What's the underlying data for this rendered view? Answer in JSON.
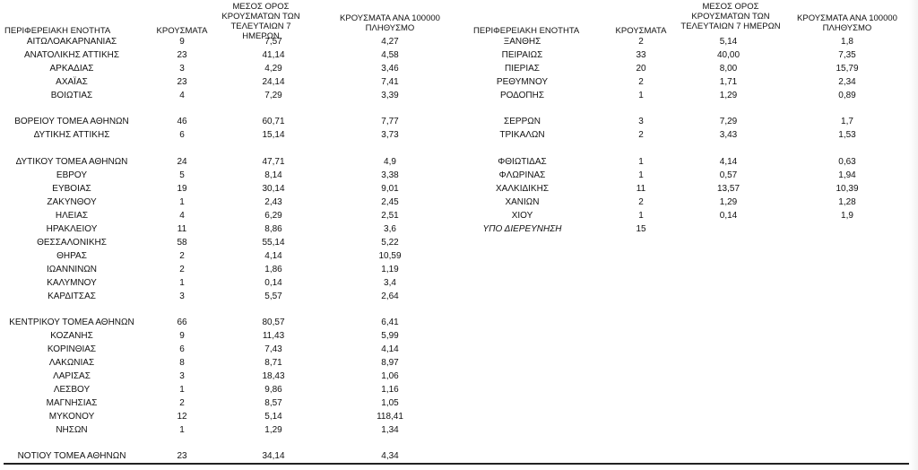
{
  "headers": {
    "left": {
      "region": "ΠΕΡΙΦΕΡΕΙΑΚΗ ΕΝΟΤΗΤΑ",
      "cases": "ΚΡΟΥΣΜΑΤΑ",
      "avg_l1": "ΜΕΣΟΣ ΟΡΟΣ",
      "avg_l2": "ΚΡΟΥΣΜΑΤΩΝ ΤΩΝ",
      "avg_l3": "ΤΕΛΕΥΤΑΙΩΝ 7 ΗΜΕΡΩΝ",
      "per_l1": "ΚΡΟΥΣΜΑΤΑ ΑΝΑ 100000",
      "per_l2": "ΠΛΗΘΥΣΜΟ"
    },
    "right": {
      "region": "ΠΕΡΙΦΕΡΕΙΑΚΗ ΕΝΟΤΗΤΑ",
      "cases": "ΚΡΟΥΣΜΑΤΑ",
      "avg_l1": "ΜΕΣΟΣ ΟΡΟΣ",
      "avg_l2": "ΚΡΟΥΣΜΑΤΩΝ ΤΩΝ",
      "avg_l3": "ΤΕΛΕΥΤΑΙΩΝ 7 ΗΜΕΡΩΝ",
      "per_l1": "ΚΡΟΥΣΜΑΤΑ ΑΝΑ 100000",
      "per_l2": "ΠΛΗΘΥΣΜΟ"
    }
  },
  "left_rows": [
    {
      "region": "ΑΙΤΩΛΟΑΚΑΡΝΑΝΙΑΣ",
      "cases": "9",
      "avg7": "7,57",
      "per100k": "4,27"
    },
    {
      "region": "ΑΝΑΤΟΛΙΚΗΣ ΑΤΤΙΚΗΣ",
      "cases": "23",
      "avg7": "41,14",
      "per100k": "4,58"
    },
    {
      "region": "ΑΡΚΑΔΙΑΣ",
      "cases": "3",
      "avg7": "4,29",
      "per100k": "3,46"
    },
    {
      "region": "ΑΧΑΪΑΣ",
      "cases": "23",
      "avg7": "24,14",
      "per100k": "7,41"
    },
    {
      "region": "ΒΟΙΩΤΙΑΣ",
      "cases": "4",
      "avg7": "7,29",
      "per100k": "3,39"
    },
    {
      "region": "ΒΟΡΕΙΟΥ ΤΟΜΕΑ ΑΘΗΝΩΝ",
      "cases": "46",
      "avg7": "60,71",
      "per100k": "7,77"
    },
    {
      "region": "ΔΥΤΙΚΗΣ ΑΤΤΙΚΗΣ",
      "cases": "6",
      "avg7": "15,14",
      "per100k": "3,73"
    },
    {
      "region": "ΔΥΤΙΚΟΥ ΤΟΜΕΑ ΑΘΗΝΩΝ",
      "cases": "24",
      "avg7": "47,71",
      "per100k": "4,9"
    },
    {
      "region": "ΕΒΡΟΥ",
      "cases": "5",
      "avg7": "8,14",
      "per100k": "3,38"
    },
    {
      "region": "ΕΥΒΟΙΑΣ",
      "cases": "19",
      "avg7": "30,14",
      "per100k": "9,01"
    },
    {
      "region": "ΖΑΚΥΝΘΟΥ",
      "cases": "1",
      "avg7": "2,43",
      "per100k": "2,45"
    },
    {
      "region": "ΗΛΕΙΑΣ",
      "cases": "4",
      "avg7": "6,29",
      "per100k": "2,51"
    },
    {
      "region": "ΗΡΑΚΛΕΙΟΥ",
      "cases": "11",
      "avg7": "8,86",
      "per100k": "3,6"
    },
    {
      "region": "ΘΕΣΣΑΛΟΝΙΚΗΣ",
      "cases": "58",
      "avg7": "55,14",
      "per100k": "5,22"
    },
    {
      "region": "ΘΗΡΑΣ",
      "cases": "2",
      "avg7": "4,14",
      "per100k": "10,59"
    },
    {
      "region": "ΙΩΑΝΝΙΝΩΝ",
      "cases": "2",
      "avg7": "1,86",
      "per100k": "1,19"
    },
    {
      "region": "ΚΑΛΥΜΝΟΥ",
      "cases": "1",
      "avg7": "0,14",
      "per100k": "3,4"
    },
    {
      "region": "ΚΑΡΔΙΤΣΑΣ",
      "cases": "3",
      "avg7": "5,57",
      "per100k": "2,64"
    },
    {
      "region": "ΚΕΝΤΡΙΚΟΥ ΤΟΜΕΑ ΑΘΗΝΩΝ",
      "cases": "66",
      "avg7": "80,57",
      "per100k": "6,41"
    },
    {
      "region": "ΚΟΖΑΝΗΣ",
      "cases": "9",
      "avg7": "11,43",
      "per100k": "5,99"
    },
    {
      "region": "ΚΟΡΙΝΘΙΑΣ",
      "cases": "6",
      "avg7": "7,43",
      "per100k": "4,14"
    },
    {
      "region": "ΛΑΚΩΝΙΑΣ",
      "cases": "8",
      "avg7": "8,71",
      "per100k": "8,97"
    },
    {
      "region": "ΛΑΡΙΣΑΣ",
      "cases": "3",
      "avg7": "18,43",
      "per100k": "1,06"
    },
    {
      "region": "ΛΕΣΒΟΥ",
      "cases": "1",
      "avg7": "9,86",
      "per100k": "1,16"
    },
    {
      "region": "ΜΑΓΝΗΣΙΑΣ",
      "cases": "2",
      "avg7": "8,57",
      "per100k": "1,05"
    },
    {
      "region": "ΜΥΚΟΝΟΥ",
      "cases": "12",
      "avg7": "5,14",
      "per100k": "118,41"
    },
    {
      "region": "ΝΗΣΩΝ",
      "cases": "1",
      "avg7": "1,29",
      "per100k": "1,34"
    },
    {
      "region": "ΝΟΤΙΟΥ ΤΟΜΕΑ ΑΘΗΝΩΝ",
      "cases": "23",
      "avg7": "34,14",
      "per100k": "4,34"
    }
  ],
  "right_rows": [
    {
      "region": "ΞΑΝΘΗΣ",
      "cases": "2",
      "avg7": "5,14",
      "per100k": "1,8"
    },
    {
      "region": "ΠΕΙΡΑΙΩΣ",
      "cases": "33",
      "avg7": "40,00",
      "per100k": "7,35"
    },
    {
      "region": "ΠΙΕΡΙΑΣ",
      "cases": "20",
      "avg7": "8,00",
      "per100k": "15,79"
    },
    {
      "region": "ΡΕΘΥΜΝΟΥ",
      "cases": "2",
      "avg7": "1,71",
      "per100k": "2,34"
    },
    {
      "region": "ΡΟΔΟΠΗΣ",
      "cases": "1",
      "avg7": "1,29",
      "per100k": "0,89"
    },
    {
      "region": "ΣΕΡΡΩΝ",
      "cases": "3",
      "avg7": "7,29",
      "per100k": "1,7"
    },
    {
      "region": "ΤΡΙΚΑΛΩΝ",
      "cases": "2",
      "avg7": "3,43",
      "per100k": "1,53"
    },
    {
      "region": "ΦΘΙΩΤΙΔΑΣ",
      "cases": "1",
      "avg7": "4,14",
      "per100k": "0,63"
    },
    {
      "region": "ΦΛΩΡΙΝΑΣ",
      "cases": "1",
      "avg7": "0,57",
      "per100k": "1,94"
    },
    {
      "region": "ΧΑΛΚΙΔΙΚΗΣ",
      "cases": "11",
      "avg7": "13,57",
      "per100k": "10,39"
    },
    {
      "region": "ΧΑΝΙΩΝ",
      "cases": "2",
      "avg7": "1,29",
      "per100k": "1,28"
    },
    {
      "region": "ΧΙΟΥ",
      "cases": "1",
      "avg7": "0,14",
      "per100k": "1,9"
    },
    {
      "region": "ΥΠΟ ΔΙΕΡΕΥΝΗΣΗ",
      "cases": "15",
      "avg7": "",
      "per100k": ""
    }
  ]
}
